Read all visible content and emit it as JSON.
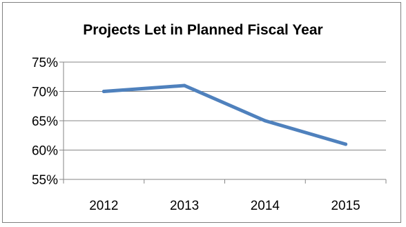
{
  "chart_data": {
    "type": "line",
    "title": "Projects Let in Planned Fiscal Year",
    "categories": [
      "2012",
      "2013",
      "2014",
      "2015"
    ],
    "series": [
      {
        "values": [
          70,
          71,
          65,
          61
        ],
        "color": "#4f81bd"
      }
    ],
    "y_ticks": [
      "55%",
      "60%",
      "65%",
      "70%",
      "75%"
    ],
    "y_tick_values": [
      55,
      60,
      65,
      70,
      75
    ],
    "ylim": [
      55,
      75
    ],
    "grid": true,
    "legend": "none"
  }
}
